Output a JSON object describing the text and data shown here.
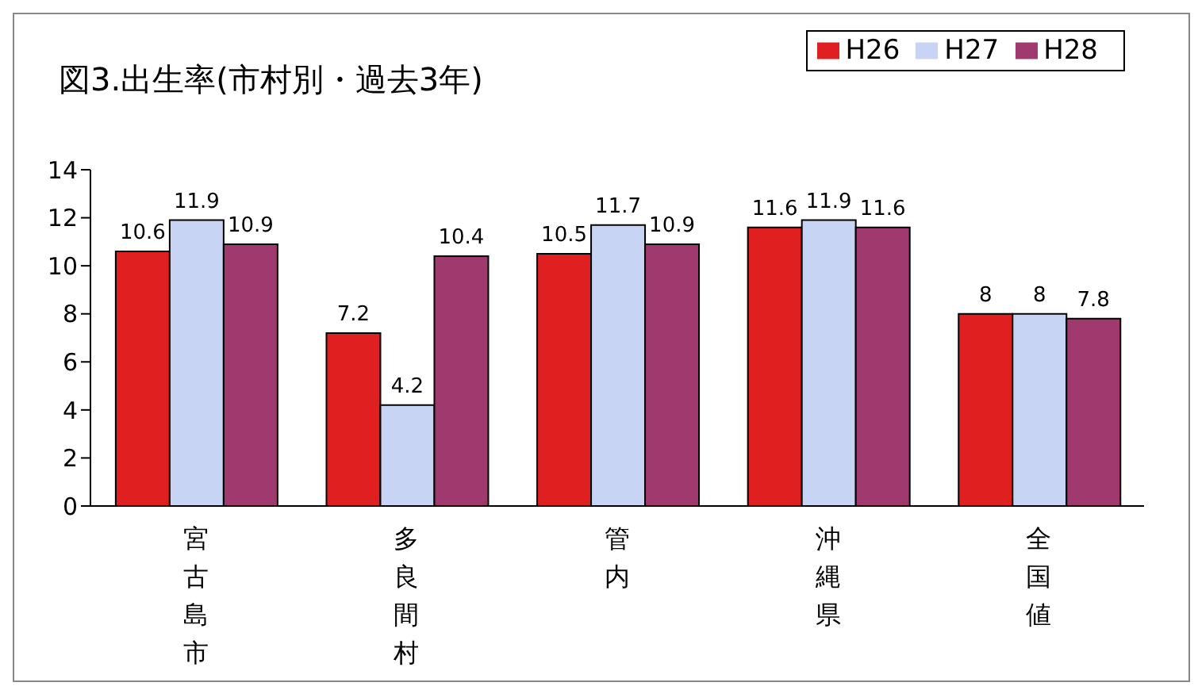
{
  "chart_data": {
    "type": "bar",
    "title": "図3.出生率(市村別・過去3年)",
    "categories": [
      "宮古島市",
      "多良間村",
      "管内",
      "沖縄県",
      "全国値"
    ],
    "series": [
      {
        "name": "H26",
        "color": "#e02020",
        "values": [
          10.6,
          7.2,
          10.5,
          11.6,
          8
        ]
      },
      {
        "name": "H27",
        "color": "#c8d4f4",
        "values": [
          11.9,
          4.2,
          11.7,
          11.9,
          8
        ]
      },
      {
        "name": "H28",
        "color": "#a03a6e",
        "values": [
          10.9,
          10.4,
          10.9,
          11.6,
          7.8
        ]
      }
    ],
    "ylim": [
      0,
      14
    ],
    "yticks": [
      0,
      2,
      4,
      6,
      8,
      10,
      12,
      14
    ],
    "grid": false,
    "legend": "top right",
    "data_labels": true
  }
}
